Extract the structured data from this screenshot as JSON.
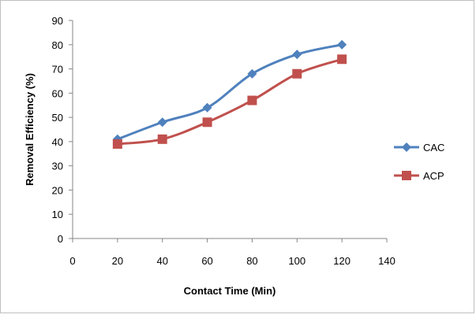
{
  "chart_data": {
    "type": "line",
    "title": "",
    "xlabel": "Contact Time (Min)",
    "ylabel": "Removal Efficiency (%)",
    "xlim": [
      0,
      140
    ],
    "ylim": [
      0,
      90
    ],
    "x_ticks": [
      0,
      20,
      40,
      60,
      80,
      100,
      120,
      140
    ],
    "y_ticks": [
      0,
      10,
      20,
      30,
      40,
      50,
      60,
      70,
      80,
      90
    ],
    "grid": false,
    "legend_position": "right",
    "x": [
      20,
      40,
      60,
      80,
      100,
      120
    ],
    "series": [
      {
        "name": "CAC",
        "values": [
          41,
          48,
          54,
          68,
          76,
          80
        ],
        "color": "#4f81bd",
        "marker": "diamond"
      },
      {
        "name": "ACP",
        "values": [
          39,
          41,
          48,
          57,
          68,
          74
        ],
        "color": "#c0504d",
        "marker": "square"
      }
    ]
  }
}
